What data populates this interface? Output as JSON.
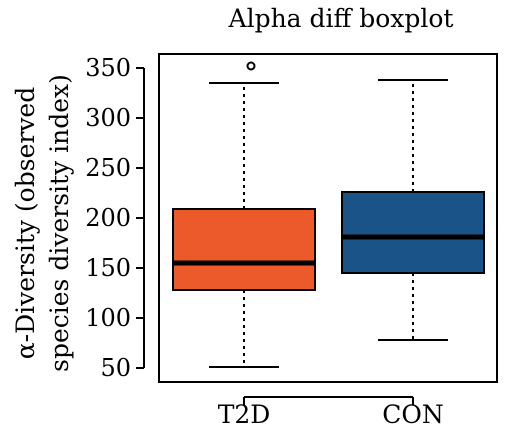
{
  "chart_data": {
    "type": "boxplot",
    "title": "Alpha diff boxplot",
    "ylabel_lines": [
      "α-Diversity (observed",
      "species diversity index)"
    ],
    "xlabel": "",
    "ylim": [
      45,
      360
    ],
    "yticks": [
      50,
      100,
      150,
      200,
      250,
      300,
      350
    ],
    "grid": false,
    "legend": "none",
    "categories": [
      "T2D",
      "CON"
    ],
    "boxes": [
      {
        "category": "T2D",
        "whisker_low": 51,
        "q1": 128,
        "median": 155,
        "q3": 209,
        "whisker_high": 335,
        "outliers": [
          352
        ],
        "color": "#ec5a2b"
      },
      {
        "category": "CON",
        "whisker_low": 78,
        "q1": 145,
        "median": 181,
        "q3": 226,
        "whisker_high": 338,
        "outliers": [],
        "color": "#1a5388"
      }
    ]
  }
}
